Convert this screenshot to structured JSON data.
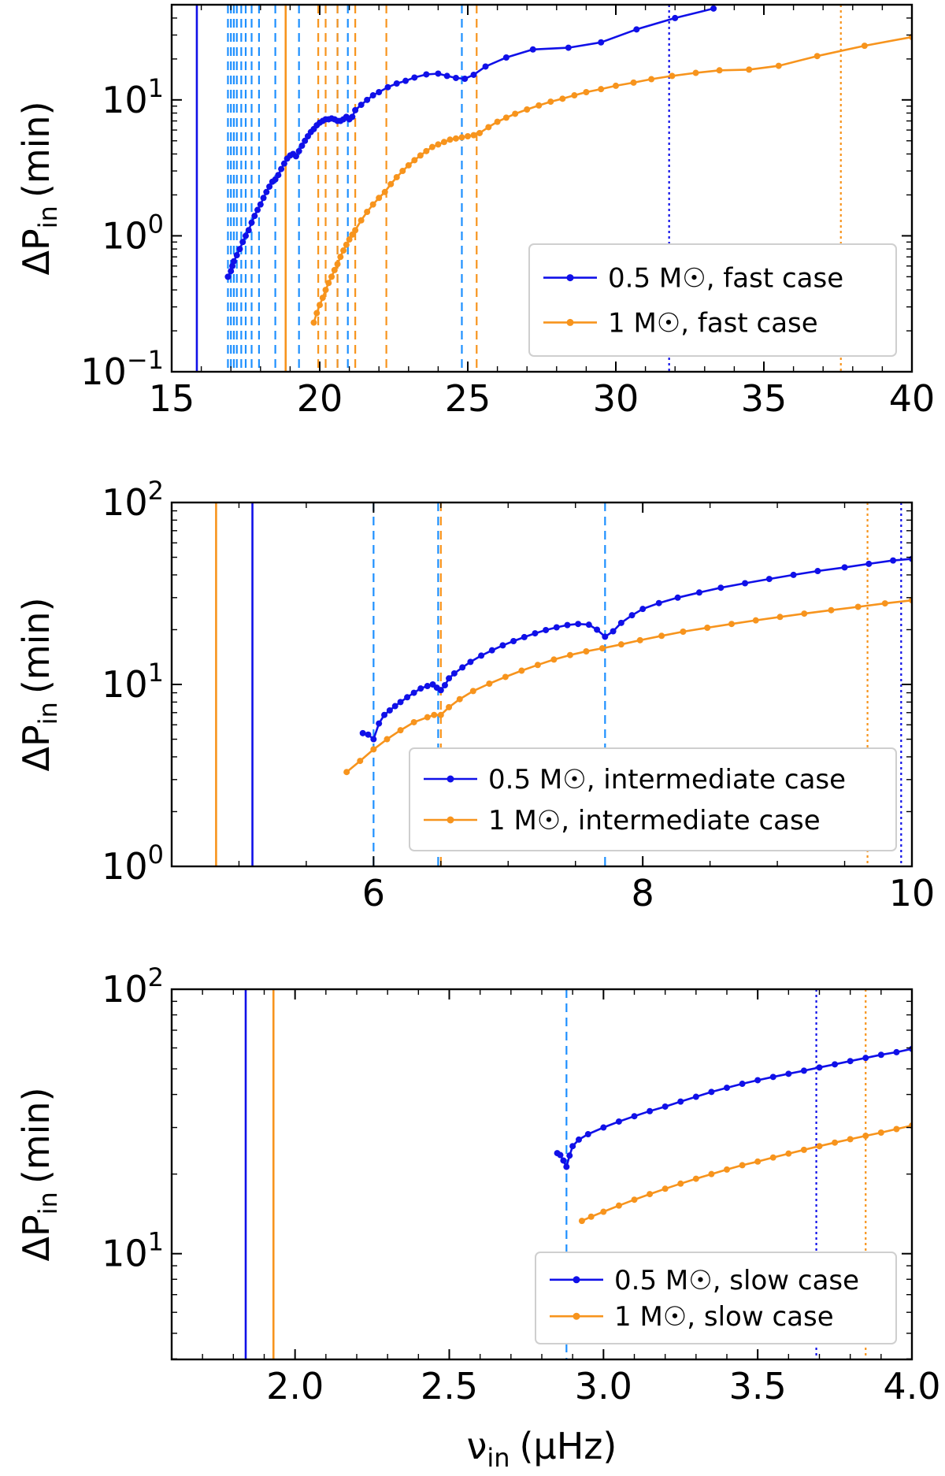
{
  "colors": {
    "half_msun": "#1010e8",
    "one_msun": "#f7941d",
    "mode_line": "#1e90ff"
  },
  "chart_data": [
    {
      "type": "line",
      "name": "fast",
      "yscale": "log",
      "xlim": [
        15,
        40
      ],
      "ylim_exp": [
        -1,
        1.7
      ],
      "xticks": [
        15,
        20,
        25,
        30,
        35,
        40
      ],
      "xtick_labels": [
        "15",
        "20",
        "25",
        "30",
        "35",
        "40"
      ],
      "yticks_exp": [
        -1,
        0,
        1
      ],
      "ylabel_main": "ΔP",
      "ylabel_sub": "in",
      "ylabel_units": "(min)",
      "legend": [
        "0.5 M☉, fast case",
        "1 M☉, fast case"
      ],
      "legend_position": "lower right",
      "series": [
        {
          "name": "0.5 M☉, fast case",
          "color_key": "half_msun",
          "x": [
            16.9,
            17.0,
            17.05,
            17.1,
            17.2,
            17.3,
            17.4,
            17.5,
            17.6,
            17.7,
            17.8,
            17.9,
            18.0,
            18.1,
            18.2,
            18.3,
            18.4,
            18.5,
            18.6,
            18.7,
            18.8,
            18.9,
            19.0,
            19.1,
            19.2,
            19.3,
            19.4,
            19.5,
            19.6,
            19.7,
            19.8,
            19.9,
            20.0,
            20.1,
            20.2,
            20.3,
            20.4,
            20.5,
            20.6,
            20.7,
            20.8,
            20.9,
            21.0,
            21.1,
            21.2,
            21.4,
            21.6,
            21.8,
            22.0,
            22.3,
            22.6,
            22.9,
            23.2,
            23.6,
            24.0,
            24.3,
            24.6,
            24.9,
            25.2,
            25.6,
            26.3,
            27.2,
            28.4,
            29.5,
            30.7,
            32.0,
            33.3
          ],
          "y": [
            0.5,
            0.55,
            0.6,
            0.65,
            0.72,
            0.8,
            0.9,
            1.0,
            1.1,
            1.25,
            1.4,
            1.55,
            1.7,
            1.9,
            2.1,
            2.3,
            2.5,
            2.6,
            2.8,
            3.1,
            3.4,
            3.7,
            3.9,
            4.0,
            3.85,
            4.2,
            4.6,
            5.0,
            5.4,
            5.8,
            6.1,
            6.5,
            6.8,
            7.0,
            7.2,
            7.2,
            7.3,
            7.2,
            7.0,
            7.0,
            7.2,
            7.5,
            7.2,
            7.5,
            8.4,
            9.2,
            10.0,
            10.8,
            11.4,
            12.4,
            13.2,
            13.8,
            14.6,
            15.4,
            15.6,
            15.0,
            14.5,
            14.3,
            15.3,
            17.6,
            20.5,
            23.5,
            24.2,
            26.5,
            33.0,
            40.0,
            47.0
          ]
        },
        {
          "name": "1 M☉, fast case",
          "color_key": "one_msun",
          "x": [
            19.8,
            19.9,
            20.0,
            20.1,
            20.2,
            20.3,
            20.4,
            20.5,
            20.6,
            20.7,
            20.8,
            20.9,
            21.0,
            21.1,
            21.2,
            21.4,
            21.6,
            21.8,
            22.0,
            22.2,
            22.4,
            22.6,
            22.8,
            23.0,
            23.2,
            23.4,
            23.6,
            23.8,
            24.0,
            24.2,
            24.4,
            24.6,
            24.8,
            25.0,
            25.2,
            25.4,
            25.7,
            26.0,
            26.3,
            26.6,
            27.0,
            27.4,
            27.8,
            28.2,
            28.6,
            29.0,
            29.5,
            30.0,
            30.6,
            31.2,
            31.9,
            32.7,
            33.5,
            34.5,
            35.5,
            36.8,
            38.4,
            40.0
          ],
          "y": [
            0.23,
            0.27,
            0.31,
            0.35,
            0.4,
            0.45,
            0.5,
            0.56,
            0.62,
            0.7,
            0.78,
            0.86,
            0.94,
            1.02,
            1.1,
            1.3,
            1.5,
            1.7,
            1.9,
            2.1,
            2.4,
            2.7,
            3.0,
            3.3,
            3.6,
            3.9,
            4.2,
            4.5,
            4.7,
            4.9,
            5.1,
            5.2,
            5.3,
            5.4,
            5.5,
            5.7,
            6.3,
            6.9,
            7.4,
            7.9,
            8.5,
            9.1,
            9.7,
            10.2,
            10.8,
            11.4,
            12.0,
            12.7,
            13.4,
            14.2,
            15.0,
            15.8,
            16.5,
            16.7,
            17.8,
            21.0,
            25.0,
            29.0
          ]
        }
      ],
      "vlines": [
        {
          "x": 15.85,
          "style": "solid",
          "color_key": "half_msun"
        },
        {
          "x": 18.85,
          "style": "solid",
          "color_key": "one_msun"
        },
        {
          "x": 31.8,
          "style": "dotted",
          "color_key": "half_msun"
        },
        {
          "x": 37.6,
          "style": "dotted",
          "color_key": "one_msun"
        },
        {
          "x": 16.9,
          "style": "dashed",
          "color_key": "mode_line"
        },
        {
          "x": 17.0,
          "style": "dashed",
          "color_key": "mode_line"
        },
        {
          "x": 17.1,
          "style": "dashed",
          "color_key": "mode_line"
        },
        {
          "x": 17.2,
          "style": "dashed",
          "color_key": "mode_line"
        },
        {
          "x": 17.35,
          "style": "dashed",
          "color_key": "mode_line"
        },
        {
          "x": 17.5,
          "style": "dashed",
          "color_key": "mode_line"
        },
        {
          "x": 17.7,
          "style": "dashed",
          "color_key": "mode_line"
        },
        {
          "x": 17.95,
          "style": "dashed",
          "color_key": "mode_line"
        },
        {
          "x": 18.5,
          "style": "dashed",
          "color_key": "mode_line"
        },
        {
          "x": 19.3,
          "style": "dashed",
          "color_key": "mode_line"
        },
        {
          "x": 20.6,
          "style": "dashed",
          "color_key": "mode_line"
        },
        {
          "x": 20.95,
          "style": "dashed",
          "color_key": "mode_line"
        },
        {
          "x": 24.8,
          "style": "dashed",
          "color_key": "mode_line"
        },
        {
          "x": 19.95,
          "style": "dashed",
          "color_key": "one_msun"
        },
        {
          "x": 20.2,
          "style": "dashed",
          "color_key": "one_msun"
        },
        {
          "x": 20.6,
          "style": "dashed",
          "color_key": "one_msun"
        },
        {
          "x": 21.2,
          "style": "dashed",
          "color_key": "one_msun"
        },
        {
          "x": 22.25,
          "style": "dashed",
          "color_key": "one_msun"
        },
        {
          "x": 25.3,
          "style": "dashed",
          "color_key": "one_msun"
        }
      ]
    },
    {
      "type": "line",
      "name": "intermediate",
      "yscale": "log",
      "xlim": [
        4.5,
        10
      ],
      "ylim_exp": [
        0,
        2
      ],
      "xticks": [
        6,
        8,
        10
      ],
      "xtick_labels": [
        "6",
        "8",
        "10"
      ],
      "yticks_exp": [
        0,
        1,
        2
      ],
      "ylabel_main": "ΔP",
      "ylabel_sub": "in",
      "ylabel_units": "(min)",
      "legend": [
        "0.5 M☉, intermediate case",
        "1 M☉, intermediate case"
      ],
      "legend_position": "lower right",
      "series": [
        {
          "name": "0.5 M☉, intermediate case",
          "color_key": "half_msun",
          "x": [
            5.92,
            5.96,
            6.0,
            6.04,
            6.08,
            6.12,
            6.16,
            6.2,
            6.25,
            6.3,
            6.35,
            6.4,
            6.44,
            6.47,
            6.5,
            6.53,
            6.56,
            6.6,
            6.66,
            6.72,
            6.8,
            6.88,
            6.96,
            7.04,
            7.12,
            7.2,
            7.28,
            7.36,
            7.44,
            7.52,
            7.6,
            7.66,
            7.72,
            7.78,
            7.84,
            7.92,
            8.0,
            8.12,
            8.26,
            8.42,
            8.58,
            8.76,
            8.94,
            9.12,
            9.3,
            9.5,
            9.68,
            9.86,
            10.0
          ],
          "y": [
            5.4,
            5.3,
            5.0,
            6.1,
            6.8,
            7.2,
            7.6,
            8.0,
            8.5,
            9.0,
            9.5,
            9.8,
            10.0,
            9.6,
            9.3,
            9.9,
            10.8,
            11.5,
            12.4,
            13.3,
            14.4,
            15.4,
            16.4,
            17.3,
            18.2,
            19.1,
            19.9,
            20.6,
            21.2,
            21.5,
            21.3,
            20.0,
            18.3,
            19.6,
            21.8,
            24.0,
            26.0,
            28.0,
            30.0,
            32.0,
            34.0,
            36.0,
            38.0,
            40.0,
            42.0,
            44.0,
            46.0,
            48.0,
            49.0
          ]
        },
        {
          "name": "1 M☉, intermediate case",
          "color_key": "one_msun",
          "x": [
            5.8,
            5.9,
            6.0,
            6.1,
            6.2,
            6.3,
            6.4,
            6.45,
            6.5,
            6.56,
            6.64,
            6.74,
            6.86,
            6.98,
            7.1,
            7.22,
            7.34,
            7.46,
            7.58,
            7.7,
            7.84,
            7.98,
            8.14,
            8.3,
            8.48,
            8.66,
            8.84,
            9.02,
            9.2,
            9.4,
            9.6,
            9.8,
            10.0
          ],
          "y": [
            3.3,
            3.8,
            4.4,
            5.0,
            5.6,
            6.2,
            6.6,
            6.8,
            6.8,
            7.5,
            8.3,
            9.2,
            10.1,
            11.0,
            11.9,
            12.8,
            13.7,
            14.5,
            15.2,
            15.8,
            16.6,
            17.5,
            18.5,
            19.5,
            20.5,
            21.5,
            22.5,
            23.5,
            24.5,
            25.6,
            26.7,
            27.9,
            29.0
          ]
        }
      ],
      "vlines": [
        {
          "x": 4.83,
          "style": "solid",
          "color_key": "one_msun"
        },
        {
          "x": 5.1,
          "style": "solid",
          "color_key": "half_msun"
        },
        {
          "x": 6.0,
          "style": "dashed",
          "color_key": "mode_line"
        },
        {
          "x": 6.48,
          "style": "dashed",
          "color_key": "mode_line"
        },
        {
          "x": 6.5,
          "style": "dashed",
          "color_key": "one_msun"
        },
        {
          "x": 7.72,
          "style": "dashed",
          "color_key": "mode_line"
        },
        {
          "x": 9.67,
          "style": "dotted",
          "color_key": "one_msun"
        },
        {
          "x": 9.92,
          "style": "dotted",
          "color_key": "half_msun"
        }
      ]
    },
    {
      "type": "line",
      "name": "slow",
      "yscale": "log",
      "xlim": [
        1.6,
        4.0
      ],
      "ylim_exp": [
        0.6,
        2
      ],
      "xticks": [
        2.0,
        2.5,
        3.0,
        3.5,
        4.0
      ],
      "xtick_labels": [
        "2.0",
        "2.5",
        "3.0",
        "3.5",
        "4.0"
      ],
      "yticks_exp": [
        1,
        2
      ],
      "ylabel_main": "ΔP",
      "ylabel_sub": "in",
      "ylabel_units": "(min)",
      "xlabel_main": "ν",
      "xlabel_sub": "in",
      "xlabel_units": "(μHz)",
      "legend": [
        "0.5 M☉, slow case",
        "1 M☉, slow case"
      ],
      "legend_position": "lower right",
      "series": [
        {
          "name": "0.5 M☉, slow case",
          "color_key": "half_msun",
          "x": [
            2.85,
            2.86,
            2.87,
            2.88,
            2.89,
            2.9,
            2.92,
            2.95,
            3.0,
            3.05,
            3.1,
            3.15,
            3.2,
            3.25,
            3.3,
            3.35,
            3.4,
            3.45,
            3.5,
            3.55,
            3.6,
            3.65,
            3.7,
            3.75,
            3.8,
            3.85,
            3.9,
            3.95,
            4.0
          ],
          "y": [
            24.0,
            23.6,
            22.5,
            21.3,
            23.5,
            25.5,
            27.0,
            28.3,
            30.0,
            31.6,
            33.1,
            34.6,
            36.0,
            37.6,
            39.2,
            40.9,
            42.4,
            43.9,
            45.3,
            46.6,
            47.9,
            49.2,
            50.6,
            52.0,
            53.5,
            55.0,
            56.5,
            57.8,
            59.5
          ]
        },
        {
          "name": "1 M☉, slow case",
          "color_key": "one_msun",
          "x": [
            2.93,
            2.96,
            3.0,
            3.05,
            3.1,
            3.15,
            3.2,
            3.25,
            3.3,
            3.35,
            3.4,
            3.45,
            3.5,
            3.55,
            3.6,
            3.65,
            3.7,
            3.75,
            3.8,
            3.85,
            3.9,
            3.95,
            4.0
          ],
          "y": [
            13.3,
            13.8,
            14.4,
            15.2,
            16.0,
            16.8,
            17.6,
            18.4,
            19.2,
            20.0,
            20.8,
            21.6,
            22.3,
            23.1,
            23.9,
            24.7,
            25.5,
            26.3,
            27.1,
            27.9,
            28.7,
            29.6,
            30.5
          ]
        }
      ],
      "vlines": [
        {
          "x": 1.84,
          "style": "solid",
          "color_key": "half_msun"
        },
        {
          "x": 1.93,
          "style": "solid",
          "color_key": "one_msun"
        },
        {
          "x": 2.88,
          "style": "dashed",
          "color_key": "mode_line"
        },
        {
          "x": 3.69,
          "style": "dotted",
          "color_key": "half_msun"
        },
        {
          "x": 3.85,
          "style": "dotted",
          "color_key": "one_msun"
        }
      ]
    }
  ]
}
